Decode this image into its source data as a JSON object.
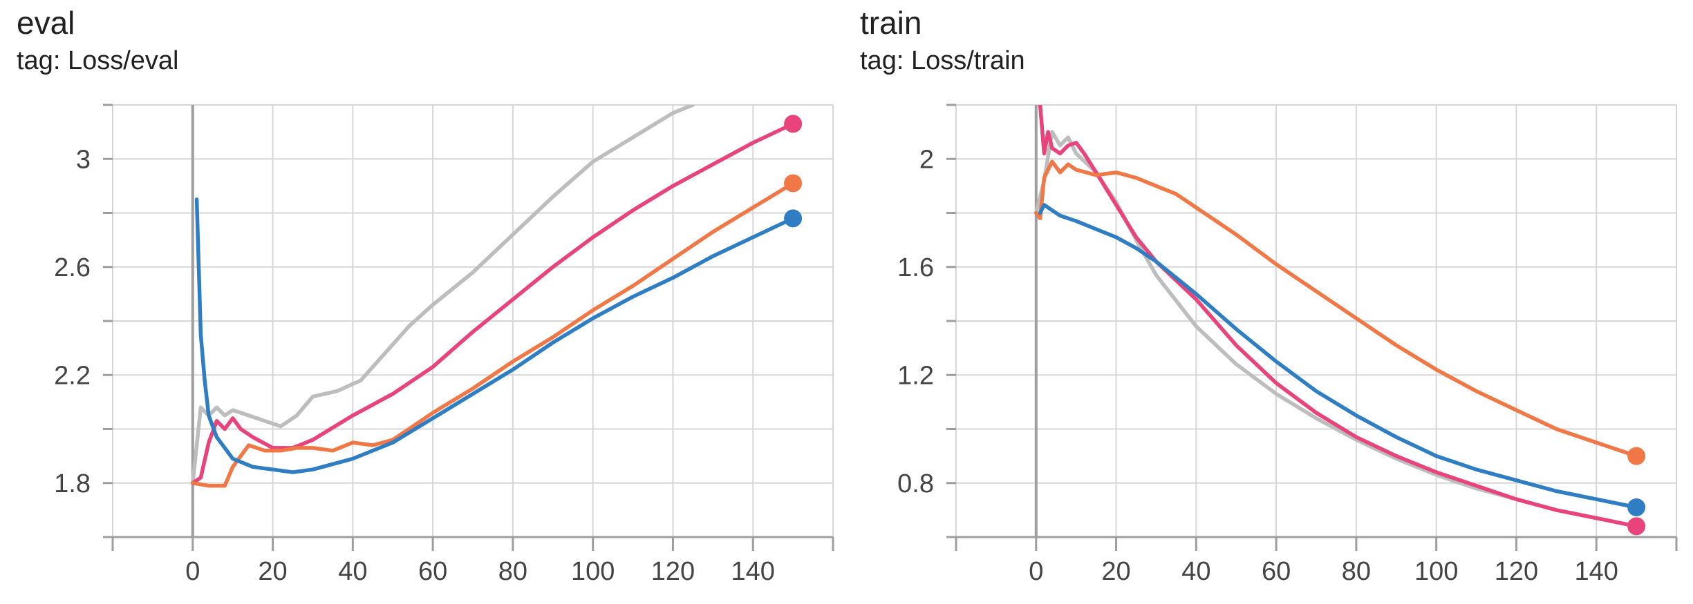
{
  "chart_data": [
    {
      "type": "line",
      "title": "eval",
      "subtitle": "tag: Loss/eval",
      "xlim": [
        -20,
        160
      ],
      "ylim": [
        1.6,
        3.2
      ],
      "xticks": [
        0,
        20,
        40,
        60,
        80,
        100,
        120,
        140
      ],
      "yticks": [
        1.8,
        2.2,
        2.6,
        3
      ],
      "ytick_labels": [
        "1.8",
        "2.2",
        "2.6",
        "3"
      ],
      "grid": true,
      "series": [
        {
          "color": "#bdbdbd",
          "x": [
            0,
            2,
            4,
            6,
            8,
            10,
            14,
            18,
            22,
            26,
            30,
            36,
            42,
            48,
            54,
            60,
            70,
            80,
            90,
            100,
            110,
            120,
            125
          ],
          "y": [
            1.8,
            2.08,
            2.05,
            2.08,
            2.05,
            2.07,
            2.05,
            2.03,
            2.01,
            2.05,
            2.12,
            2.14,
            2.18,
            2.28,
            2.38,
            2.46,
            2.58,
            2.72,
            2.86,
            2.99,
            3.08,
            3.17,
            3.2
          ]
        },
        {
          "color": "#e8437a",
          "x": [
            0,
            2,
            4,
            6,
            8,
            10,
            12,
            15,
            20,
            25,
            30,
            40,
            50,
            60,
            70,
            80,
            90,
            100,
            110,
            120,
            130,
            140,
            150
          ],
          "y": [
            1.8,
            1.82,
            1.95,
            2.03,
            2.0,
            2.04,
            2.0,
            1.97,
            1.93,
            1.93,
            1.96,
            2.05,
            2.13,
            2.23,
            2.36,
            2.48,
            2.6,
            2.71,
            2.81,
            2.9,
            2.98,
            3.06,
            3.13
          ]
        },
        {
          "color": "#f07846",
          "x": [
            0,
            4,
            8,
            10,
            12,
            14,
            18,
            22,
            26,
            30,
            35,
            40,
            45,
            50,
            55,
            60,
            70,
            80,
            90,
            100,
            110,
            120,
            130,
            140,
            150
          ],
          "y": [
            1.8,
            1.79,
            1.79,
            1.86,
            1.9,
            1.94,
            1.92,
            1.92,
            1.93,
            1.93,
            1.92,
            1.95,
            1.94,
            1.96,
            2.01,
            2.06,
            2.15,
            2.25,
            2.34,
            2.44,
            2.53,
            2.63,
            2.73,
            2.82,
            2.91
          ]
        },
        {
          "color": "#2f7ec4",
          "x": [
            1,
            1.5,
            2,
            3,
            4,
            6,
            8,
            10,
            15,
            20,
            25,
            30,
            40,
            50,
            60,
            70,
            80,
            90,
            100,
            110,
            120,
            130,
            140,
            150
          ],
          "y": [
            2.85,
            2.6,
            2.35,
            2.18,
            2.05,
            1.97,
            1.93,
            1.89,
            1.86,
            1.85,
            1.84,
            1.85,
            1.89,
            1.95,
            2.04,
            2.13,
            2.22,
            2.32,
            2.41,
            2.49,
            2.56,
            2.64,
            2.71,
            2.78
          ]
        }
      ]
    },
    {
      "type": "line",
      "title": "train",
      "subtitle": "tag: Loss/train",
      "xlim": [
        -20,
        160
      ],
      "ylim": [
        0.6,
        2.2
      ],
      "xticks": [
        0,
        20,
        40,
        60,
        80,
        100,
        120,
        140
      ],
      "yticks": [
        0.8,
        1.2,
        1.6,
        2
      ],
      "ytick_labels": [
        "0.8",
        "1.2",
        "1.6",
        "2"
      ],
      "grid": true,
      "series": [
        {
          "color": "#bdbdbd",
          "x": [
            0,
            2,
            4,
            6,
            8,
            10,
            15,
            20,
            25,
            30,
            40,
            50,
            60,
            70,
            80,
            90,
            100,
            110,
            120,
            130,
            140,
            150
          ],
          "y": [
            1.8,
            1.92,
            2.1,
            2.05,
            2.08,
            2.02,
            1.95,
            1.84,
            1.7,
            1.57,
            1.38,
            1.24,
            1.13,
            1.04,
            0.96,
            0.89,
            0.83,
            0.78,
            0.74,
            0.7,
            0.67,
            0.64
          ]
        },
        {
          "color": "#e8437a",
          "x": [
            1,
            2,
            3,
            4,
            6,
            8,
            10,
            12,
            15,
            20,
            25,
            30,
            40,
            50,
            60,
            70,
            80,
            90,
            100,
            110,
            120,
            130,
            140,
            150
          ],
          "y": [
            2.2,
            2.02,
            2.1,
            2.04,
            2.02,
            2.05,
            2.06,
            2.02,
            1.95,
            1.83,
            1.71,
            1.62,
            1.48,
            1.31,
            1.17,
            1.06,
            0.97,
            0.9,
            0.84,
            0.79,
            0.74,
            0.7,
            0.67,
            0.64
          ]
        },
        {
          "color": "#f07846",
          "x": [
            0,
            1,
            2,
            4,
            6,
            8,
            10,
            15,
            20,
            25,
            30,
            35,
            40,
            50,
            60,
            70,
            80,
            90,
            100,
            110,
            120,
            130,
            140,
            150
          ],
          "y": [
            1.8,
            1.78,
            1.93,
            1.99,
            1.95,
            1.98,
            1.96,
            1.94,
            1.95,
            1.93,
            1.9,
            1.87,
            1.82,
            1.72,
            1.61,
            1.51,
            1.41,
            1.31,
            1.22,
            1.14,
            1.07,
            1.0,
            0.95,
            0.9
          ]
        },
        {
          "color": "#2f7ec4",
          "x": [
            1,
            2,
            4,
            6,
            8,
            10,
            15,
            20,
            25,
            30,
            40,
            50,
            60,
            70,
            80,
            90,
            100,
            110,
            120,
            130,
            140,
            150
          ],
          "y": [
            1.8,
            1.83,
            1.81,
            1.79,
            1.78,
            1.77,
            1.74,
            1.71,
            1.67,
            1.62,
            1.5,
            1.37,
            1.25,
            1.14,
            1.05,
            0.97,
            0.9,
            0.85,
            0.81,
            0.77,
            0.74,
            0.71
          ]
        }
      ]
    }
  ]
}
